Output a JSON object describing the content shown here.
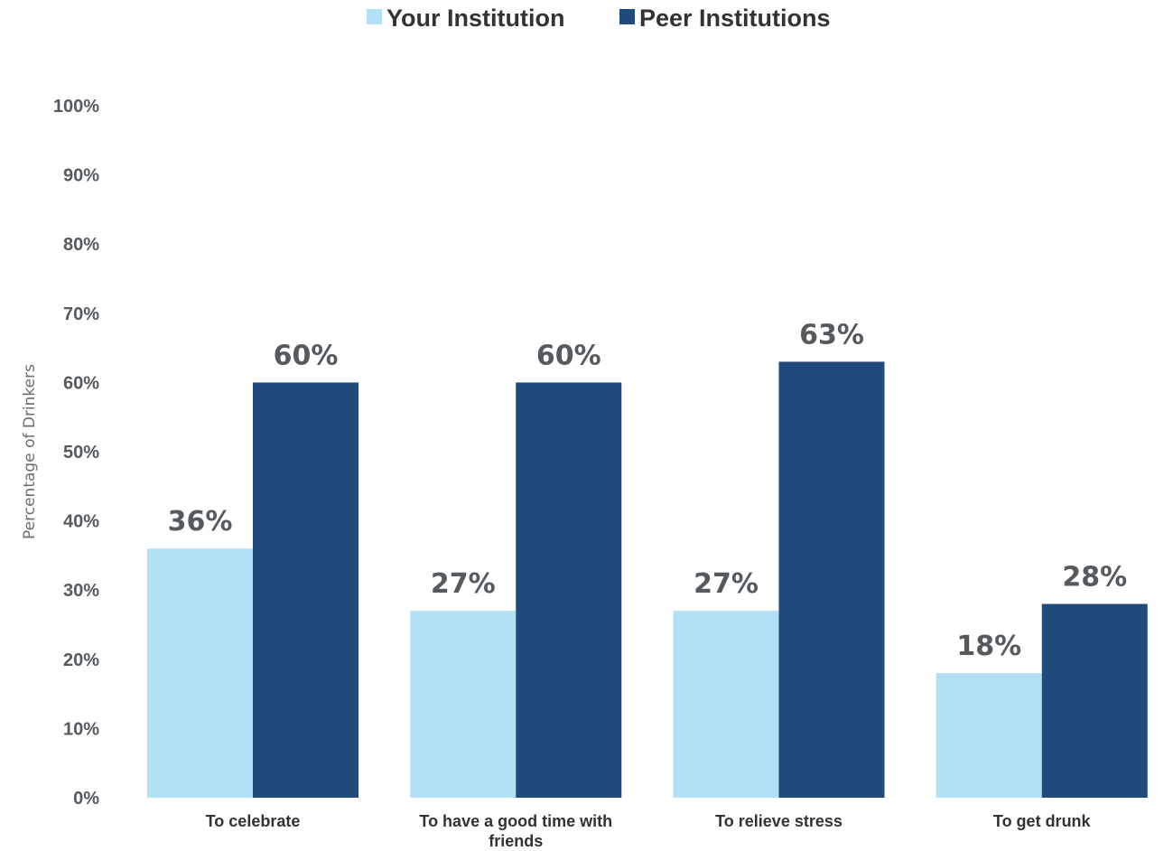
{
  "chart_data": {
    "type": "bar",
    "title": "",
    "xlabel": "",
    "ylabel": "Percentage of Drinkers",
    "ylim": [
      0,
      100
    ],
    "yticks": [
      0,
      10,
      20,
      30,
      40,
      50,
      60,
      70,
      80,
      90,
      100
    ],
    "ytick_labels": [
      "0%",
      "10%",
      "20%",
      "30%",
      "40%",
      "50%",
      "60%",
      "70%",
      "80%",
      "90%",
      "100%"
    ],
    "categories": [
      [
        "To celebrate"
      ],
      [
        "To have a good time with",
        "friends"
      ],
      [
        "To relieve stress"
      ],
      [
        "To get drunk"
      ]
    ],
    "series": [
      {
        "name": "Your Institution",
        "color": "#b3e0f5",
        "values": [
          36,
          27,
          27,
          18
        ],
        "labels": [
          "36%",
          "27%",
          "27%",
          "18%"
        ]
      },
      {
        "name": "Peer Institutions",
        "color": "#214a7c",
        "values": [
          60,
          60,
          63,
          28
        ],
        "labels": [
          "60%",
          "60%",
          "63%",
          "28%"
        ]
      }
    ],
    "legend_position": "top-center",
    "grid": false
  }
}
